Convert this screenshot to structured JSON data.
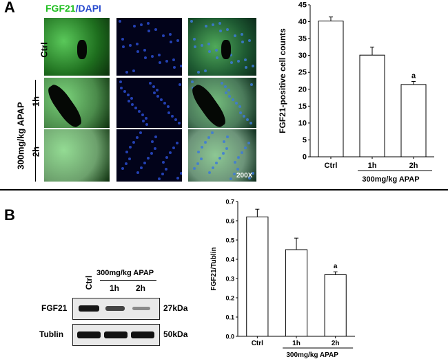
{
  "panel_a": {
    "letter": "A",
    "stain_label_green": "FGF21",
    "stain_label_sep": "/",
    "stain_label_blue": "DAPI",
    "row_ctrl": "Ctrl",
    "row_1h": "1h",
    "row_2h": "2h",
    "treatment": "300mg/kg APAP",
    "magnification": "200X"
  },
  "panel_b": {
    "letter": "B",
    "blot_treatment": "300mg/kg APAP",
    "lane_ctrl": "Ctrl",
    "lane_1h": "1h",
    "lane_2h": "2h",
    "row_fgf21": "FGF21",
    "row_tublin": "Tublin",
    "size_fgf21": "27kDa",
    "size_tublin": "50kDa"
  },
  "chart_data": [
    {
      "type": "bar",
      "categories": [
        "Ctrl",
        "1h",
        "2h"
      ],
      "values": [
        40.2,
        30.1,
        21.4
      ],
      "errors": [
        1.2,
        2.4,
        0.9
      ],
      "significance": [
        "",
        "",
        "a"
      ],
      "ylabel": "FGF21-positive cell counts",
      "group_label": "300mg/kg APAP",
      "ylim": [
        0,
        45
      ],
      "yticks": [
        0,
        5,
        10,
        15,
        20,
        25,
        30,
        35,
        40,
        45
      ]
    },
    {
      "type": "bar",
      "categories": [
        "Ctrl",
        "1h",
        "2h"
      ],
      "values": [
        0.62,
        0.45,
        0.32
      ],
      "errors": [
        0.04,
        0.06,
        0.015
      ],
      "significance": [
        "",
        "",
        "a"
      ],
      "ylabel": "FGF21/Tublin",
      "group_label": "300mg/kg APAP",
      "ylim": [
        0,
        0.7
      ],
      "yticks": [
        0.0,
        0.1,
        0.2,
        0.3,
        0.4,
        0.5,
        0.6,
        0.7
      ]
    }
  ],
  "colors": {
    "green_stain": "#22c022",
    "blue_stain": "#2a4ccf"
  }
}
